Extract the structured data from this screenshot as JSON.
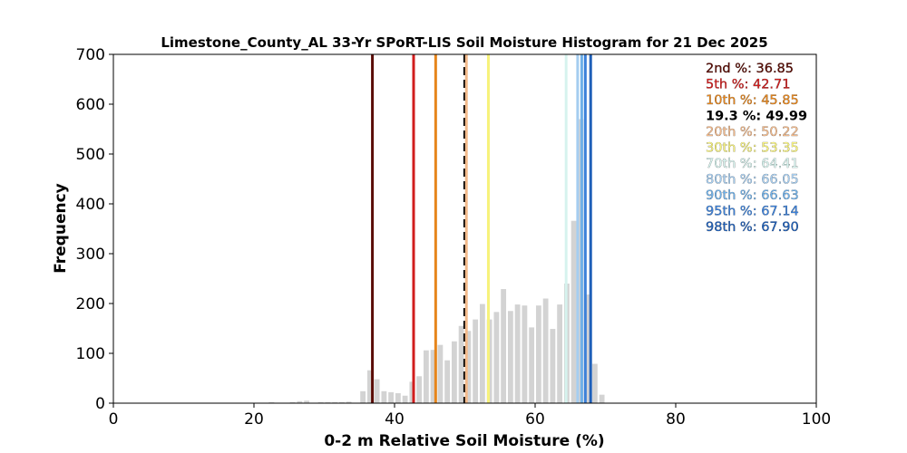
{
  "chart_data": {
    "type": "bar",
    "title": "Limestone_County_AL 33-Yr SPoRT-LIS Soil Moisture Histogram for 21 Dec 2025",
    "xlabel": "0-2 m Relative Soil Moisture (%)",
    "ylabel": "Frequency",
    "xlim": [
      0,
      100
    ],
    "ylim": [
      0,
      700
    ],
    "xticks": [
      0,
      20,
      40,
      60,
      80,
      100
    ],
    "yticks": [
      0,
      100,
      200,
      300,
      400,
      500,
      600,
      700
    ],
    "grid": false,
    "bar_color": "#d3d3d3",
    "histogram": [
      {
        "x": 22.5,
        "y": 2
      },
      {
        "x": 25.5,
        "y": 2
      },
      {
        "x": 26.5,
        "y": 4
      },
      {
        "x": 27.5,
        "y": 5
      },
      {
        "x": 29.5,
        "y": 2
      },
      {
        "x": 30.5,
        "y": 2
      },
      {
        "x": 31.5,
        "y": 2
      },
      {
        "x": 32.5,
        "y": 2
      },
      {
        "x": 33.5,
        "y": 3
      },
      {
        "x": 35.5,
        "y": 24
      },
      {
        "x": 36.5,
        "y": 66
      },
      {
        "x": 37.5,
        "y": 48
      },
      {
        "x": 38.5,
        "y": 24
      },
      {
        "x": 39.5,
        "y": 22
      },
      {
        "x": 40.5,
        "y": 20
      },
      {
        "x": 41.5,
        "y": 15
      },
      {
        "x": 42.5,
        "y": 43
      },
      {
        "x": 43.5,
        "y": 54
      },
      {
        "x": 44.5,
        "y": 106
      },
      {
        "x": 45.5,
        "y": 107
      },
      {
        "x": 46.5,
        "y": 117
      },
      {
        "x": 47.5,
        "y": 86
      },
      {
        "x": 48.5,
        "y": 124
      },
      {
        "x": 49.5,
        "y": 155
      },
      {
        "x": 50.5,
        "y": 145
      },
      {
        "x": 51.5,
        "y": 168
      },
      {
        "x": 52.5,
        "y": 199
      },
      {
        "x": 53.5,
        "y": 168
      },
      {
        "x": 54.5,
        "y": 183
      },
      {
        "x": 55.5,
        "y": 229
      },
      {
        "x": 56.5,
        "y": 185
      },
      {
        "x": 57.5,
        "y": 198
      },
      {
        "x": 58.5,
        "y": 196
      },
      {
        "x": 59.5,
        "y": 152
      },
      {
        "x": 60.5,
        "y": 196
      },
      {
        "x": 61.5,
        "y": 210
      },
      {
        "x": 62.5,
        "y": 149
      },
      {
        "x": 63.5,
        "y": 198
      },
      {
        "x": 64.5,
        "y": 240
      },
      {
        "x": 65.5,
        "y": 366
      },
      {
        "x": 66.5,
        "y": 570
      },
      {
        "x": 67.5,
        "y": 218
      },
      {
        "x": 68.5,
        "y": 79
      },
      {
        "x": 69.5,
        "y": 17
      }
    ],
    "percentiles": [
      {
        "label": "2nd %",
        "value": "36.85",
        "color": "#5a0c04",
        "style": "solid"
      },
      {
        "label": "5th %",
        "value": "42.71",
        "color": "#d11d1d",
        "style": "solid"
      },
      {
        "label": "10th %",
        "value": "45.85",
        "color": "#e6851b",
        "style": "solid"
      },
      {
        "label": "19.3 %",
        "value": "49.99",
        "color": "#000000",
        "style": "dashed"
      },
      {
        "label": "20th %",
        "value": "50.22",
        "color": "#f2b98a",
        "style": "solid"
      },
      {
        "label": "30th %",
        "value": "53.35",
        "color": "#f7f27a",
        "style": "solid"
      },
      {
        "label": "70th %",
        "value": "64.41",
        "color": "#d6f3ee",
        "style": "solid"
      },
      {
        "label": "80th %",
        "value": "66.05",
        "color": "#a5cdf0",
        "style": "solid"
      },
      {
        "label": "90th %",
        "value": "66.63",
        "color": "#6fb0e8",
        "style": "solid"
      },
      {
        "label": "95th %",
        "value": "67.14",
        "color": "#3b80d9",
        "style": "solid"
      },
      {
        "label": "98th %",
        "value": "67.90",
        "color": "#1f5fb8",
        "style": "solid"
      }
    ]
  }
}
